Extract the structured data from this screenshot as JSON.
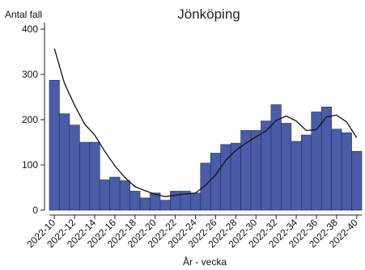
{
  "chart_data": {
    "type": "bar",
    "title": "Jönköping",
    "ylabel": "Antal fall",
    "xlabel": "År - vecka",
    "ylim": [
      0,
      420
    ],
    "yticks": [
      0,
      100,
      200,
      300,
      400
    ],
    "grid": false,
    "legend": "none",
    "bar_color": "#4a5ca8",
    "bar_edge_color": "#1f2a55",
    "line_color": "#111111",
    "x_tick_labels": [
      "2022-10",
      "2022-12",
      "2022-14",
      "2022-16",
      "2022-18",
      "2022-20",
      "2022-22",
      "2022-24",
      "2022-26",
      "2022-28",
      "2022-30",
      "2022-32",
      "2022-34",
      "2022-36",
      "2022-38",
      "2022-40"
    ],
    "categories": [
      "2022-10",
      "2022-11",
      "2022-12",
      "2022-13",
      "2022-14",
      "2022-15",
      "2022-16",
      "2022-17",
      "2022-18",
      "2022-19",
      "2022-20",
      "2022-21",
      "2022-22",
      "2022-23",
      "2022-24",
      "2022-25",
      "2022-26",
      "2022-27",
      "2022-28",
      "2022-29",
      "2022-30",
      "2022-31",
      "2022-32",
      "2022-33",
      "2022-34",
      "2022-35",
      "2022-36",
      "2022-37",
      "2022-38",
      "2022-39",
      "2022-40"
    ],
    "series": [
      {
        "type": "bar",
        "values": [
          287,
          213,
          188,
          150,
          150,
          67,
          73,
          65,
          42,
          27,
          38,
          22,
          42,
          42,
          38,
          104,
          126,
          145,
          148,
          176,
          176,
          197,
          233,
          192,
          152,
          166,
          217,
          228,
          179,
          171,
          130
        ]
      },
      {
        "type": "line",
        "values": [
          357,
          280,
          232,
          190,
          166,
          130,
          98,
          72,
          52,
          43,
          35,
          30,
          33,
          36,
          38,
          55,
          78,
          110,
          132,
          148,
          162,
          175,
          198,
          208,
          197,
          176,
          178,
          206,
          210,
          195,
          160
        ]
      }
    ]
  }
}
